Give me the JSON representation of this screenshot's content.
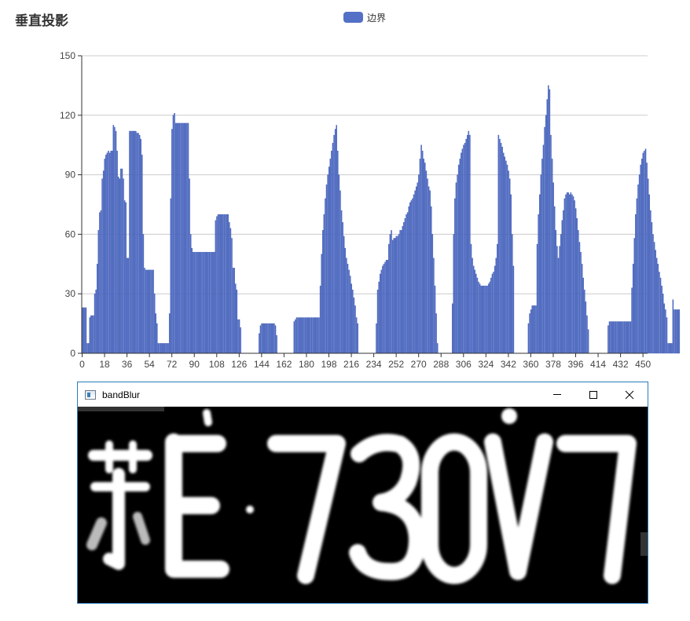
{
  "chart": {
    "title": "垂直投影",
    "legend_label": "边界",
    "legend_color": "#5470c6"
  },
  "chart_data": {
    "type": "bar",
    "title": "垂直投影",
    "xlabel": "",
    "ylabel": "",
    "ylim": [
      0,
      150
    ],
    "yticks": [
      0,
      30,
      60,
      90,
      120,
      150
    ],
    "xticks": [
      0,
      18,
      36,
      54,
      72,
      90,
      108,
      126,
      144,
      162,
      180,
      198,
      216,
      234,
      252,
      270,
      288,
      306,
      324,
      342,
      360,
      378,
      396,
      414,
      432,
      450
    ],
    "x_range": [
      0,
      454
    ],
    "grid": true,
    "legend_position": "top-center",
    "series": [
      {
        "name": "边界",
        "color": "#5470c6",
        "values": [
          23,
          23,
          23,
          23,
          5,
          5,
          18,
          19,
          19,
          19,
          30,
          32,
          45,
          62,
          71,
          72,
          88,
          92,
          98,
          100,
          101,
          102,
          101,
          102,
          102,
          115,
          114,
          112,
          102,
          89,
          88,
          93,
          93,
          88,
          77,
          76,
          48,
          48,
          112,
          112,
          112,
          112,
          112,
          112,
          111,
          111,
          110,
          108,
          100,
          60,
          43,
          42,
          42,
          42,
          42,
          42,
          42,
          42,
          30,
          20,
          15,
          5,
          5,
          5,
          5,
          5,
          5,
          5,
          5,
          5,
          20,
          78,
          113,
          120,
          121,
          116,
          116,
          116,
          116,
          116,
          116,
          116,
          116,
          116,
          116,
          116,
          88,
          60,
          53,
          51,
          51,
          51,
          51,
          51,
          51,
          51,
          51,
          51,
          51,
          51,
          51,
          51,
          51,
          51,
          51,
          51,
          51,
          67,
          69,
          70,
          70,
          70,
          70,
          70,
          70,
          70,
          70,
          70,
          66,
          63,
          58,
          43,
          43,
          35,
          32,
          17,
          17,
          13,
          0,
          0,
          0,
          0,
          0,
          0,
          0,
          0,
          0,
          0,
          0,
          0,
          0,
          0,
          10,
          14,
          15,
          15,
          15,
          15,
          15,
          15,
          15,
          15,
          15,
          15,
          15,
          14,
          9,
          0,
          0,
          0,
          0,
          0,
          0,
          0,
          0,
          0,
          0,
          0,
          0,
          0,
          16,
          17,
          18,
          18,
          18,
          18,
          18,
          18,
          18,
          18,
          18,
          18,
          18,
          18,
          18,
          18,
          18,
          18,
          18,
          18,
          18,
          34,
          50,
          62,
          70,
          78,
          85,
          90,
          94,
          98,
          102,
          106,
          110,
          113,
          115,
          102,
          90,
          82,
          72,
          66,
          59,
          53,
          48,
          45,
          42,
          39,
          35,
          32,
          28,
          24,
          18,
          15,
          0,
          0,
          0,
          0,
          0,
          0,
          0,
          0,
          0,
          0,
          0,
          0,
          0,
          0,
          15,
          32,
          36,
          40,
          42,
          44,
          45,
          46,
          47,
          47,
          55,
          60,
          62,
          57,
          58,
          58,
          59,
          59,
          60,
          62,
          62,
          64,
          66,
          68,
          70,
          71,
          74,
          76,
          77,
          78,
          80,
          82,
          84,
          86,
          90,
          98,
          105,
          102,
          98,
          96,
          92,
          88,
          84,
          82,
          74,
          60,
          48,
          34,
          20,
          5,
          0,
          0,
          0,
          0,
          0,
          0,
          0,
          0,
          0,
          0,
          0,
          25,
          60,
          78,
          86,
          90,
          95,
          98,
          101,
          103,
          105,
          106,
          108,
          110,
          112,
          110,
          55,
          48,
          44,
          42,
          40,
          38,
          36,
          35,
          34,
          34,
          34,
          34,
          34,
          34,
          35,
          36,
          38,
          40,
          41,
          44,
          48,
          55,
          110,
          108,
          106,
          104,
          101,
          99,
          97,
          95,
          92,
          88,
          80,
          60,
          44,
          0,
          0,
          0,
          0,
          0,
          0,
          0,
          0,
          0,
          0,
          0,
          15,
          20,
          22,
          24,
          24,
          24,
          24,
          55,
          70,
          80,
          90,
          98,
          105,
          114,
          120,
          128,
          135,
          133,
          110,
          98,
          86,
          74,
          62,
          54,
          48,
          54,
          60,
          67,
          72,
          78,
          80,
          81,
          81,
          80,
          81,
          80,
          79,
          77,
          73,
          68,
          62,
          56,
          51,
          45,
          38,
          32,
          26,
          19,
          12,
          0,
          0,
          0,
          0,
          0,
          0,
          0,
          0,
          0,
          0,
          0,
          0,
          0,
          0,
          0,
          14,
          16,
          16,
          16,
          16,
          16,
          16,
          16,
          16,
          16,
          16,
          16,
          16,
          16,
          16,
          16,
          16,
          16,
          16,
          33,
          45,
          58,
          70,
          78,
          85,
          90,
          95,
          98,
          101,
          102,
          103,
          96,
          88,
          80,
          72,
          66,
          60,
          56,
          52,
          48,
          45,
          41,
          38,
          34,
          30,
          25,
          22,
          18,
          5,
          5,
          5,
          5,
          27,
          22,
          22,
          22,
          22,
          22
        ]
      }
    ]
  },
  "window": {
    "title": "bandBlur",
    "minimize_label": "Minimize",
    "maximize_label": "Maximize",
    "close_label": "Close",
    "plate_text": "苏E·730V7"
  }
}
